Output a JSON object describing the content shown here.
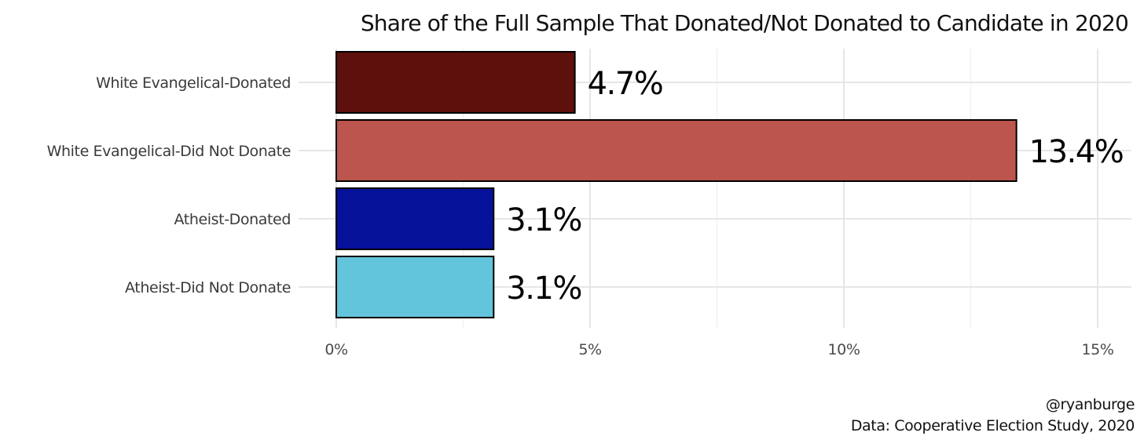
{
  "chart_data": {
    "type": "bar",
    "orientation": "horizontal",
    "title": "Share of the Full Sample That Donated/Not Donated to Candidate in 2020",
    "xlabel": "",
    "ylabel": "",
    "categories": [
      "White Evangelical-Donated",
      "White Evangelical-Did Not Donate",
      "Atheist-Donated",
      "Atheist-Did Not Donate"
    ],
    "values": [
      4.7,
      13.4,
      3.1,
      3.1
    ],
    "value_labels": [
      "4.7%",
      "13.4%",
      "3.1%",
      "3.1%"
    ],
    "colors": [
      "#5e100d",
      "#bb554d",
      "#06129a",
      "#63c5dc"
    ],
    "xlim": [
      0,
      15
    ],
    "x_ticks": [
      0,
      5,
      10,
      15
    ],
    "x_tick_labels": [
      "0%",
      "5%",
      "10%",
      "15%"
    ],
    "grid": true,
    "legend": "none"
  },
  "caption": {
    "credit": "@ryanburge",
    "source": "Data: Cooperative Election Study, 2020"
  }
}
